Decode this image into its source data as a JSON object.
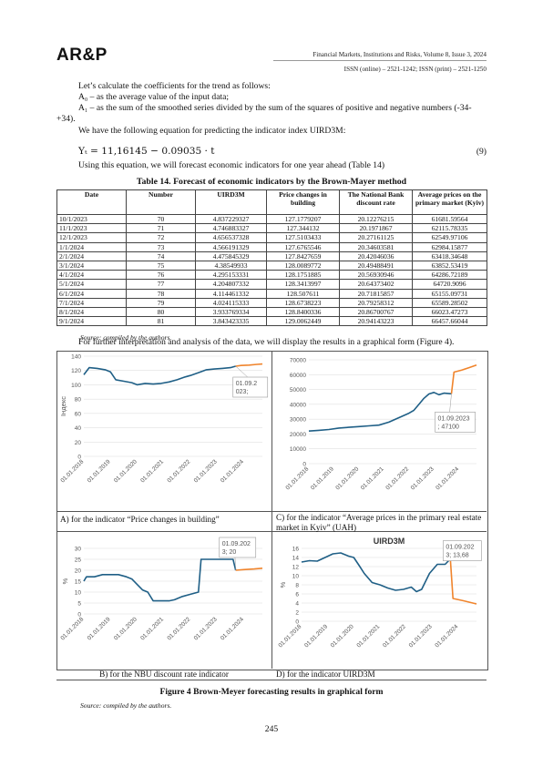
{
  "header": {
    "logo": "AR&P",
    "journal": "Financial Markets, Institutions and Risks, Volume 8, Issue 3, 2024",
    "issn": "ISSN (online) – 2521-1242; ISSN (print) – 2521-1250"
  },
  "paragraphs": {
    "p1": "Let’s calculate the coefficients for the trend as follows:",
    "p2": "A₀ –  as the average value of the input data;",
    "p3": "A₁ – as the sum of the smoothed series divided by the sum of the squares of positive and negative numbers (-34-+34).",
    "p4": "We have the following equation for predicting the indicator index UIRD3M:",
    "equation": "Yₜ = 11,16145 − 0.09035 · t",
    "equation_number": "(9)",
    "p5": "Using this equation, we will forecast economic indicators for one year ahead (Table 14)",
    "p6": "For further interpretation and analysis of the data, we will display the results in a graphical form (Figure 4)."
  },
  "table": {
    "title": "Table 14. Forecast of economic indicators by the Brown-Mayer method",
    "headers": [
      "Date",
      "Number",
      "UIRD3M",
      "Price changes in building",
      "The National Bank discount rate",
      "Average prices on the primary market (Kyiv)"
    ],
    "rows": [
      [
        "10/1/2023",
        "70",
        "4.837229327",
        "127.1779207",
        "20.12276215",
        "61681.59564"
      ],
      [
        "11/1/2023",
        "71",
        "4.746883327",
        "127.344132",
        "20.1971867",
        "62115.78335"
      ],
      [
        "12/1/2023",
        "72",
        "4.656537328",
        "127.5103433",
        "20.27161125",
        "62549.97106"
      ],
      [
        "1/1/2024",
        "73",
        "4.566191329",
        "127.6765546",
        "20.34603581",
        "62984.15877"
      ],
      [
        "2/1/2024",
        "74",
        "4.475845329",
        "127.8427659",
        "20.42046036",
        "63418.34648"
      ],
      [
        "3/1/2024",
        "75",
        "4.38549933",
        "128.0089772",
        "20.49488491",
        "63852.53419"
      ],
      [
        "4/1/2024",
        "76",
        "4.295153331",
        "128.1751885",
        "20.56930946",
        "64286.72189"
      ],
      [
        "5/1/2024",
        "77",
        "4.204807332",
        "128.3413997",
        "20.64373402",
        "64720.9096"
      ],
      [
        "6/1/2024",
        "78",
        "4.114461332",
        "128.507611",
        "20.71815857",
        "65155.09731"
      ],
      [
        "7/1/2024",
        "79",
        "4.024115333",
        "128.6738223",
        "20.79258312",
        "65589.28502"
      ],
      [
        "8/1/2024",
        "80",
        "3.933769334",
        "128.8400336",
        "20.86700767",
        "66023.47273"
      ],
      [
        "9/1/2024",
        "81",
        "3.843423335",
        "129.0062449",
        "20.94143223",
        "66457.66044"
      ]
    ],
    "source": "Source: compiled by the authors."
  },
  "figure": {
    "caption": "Figure 4 Brown-Meyer forecasting results in graphical form",
    "source": "Source: compiled by the authors.",
    "panel_captions": {
      "a": "A) for the indicator “Price changes in building”",
      "b": "B) for the NBU discount rate indicator",
      "c": "C) for the indicator “Average prices in the primary real estate market in Kyiv” (UAH)",
      "d": "D) for the indicator UIRD3M"
    }
  },
  "page_number": "245",
  "colors": {
    "actual": "#1f5f86",
    "forecast": "#f0842c",
    "grid": "#d9d9d9",
    "label_box": "#999999"
  },
  "chart_data": [
    {
      "id": "a",
      "type": "line",
      "title": "",
      "ylabel": "Індекс",
      "ylim": [
        0,
        140
      ],
      "yticks": [
        0,
        20,
        40,
        60,
        80,
        100,
        120,
        140
      ],
      "categories": [
        "01.01.2018",
        "01.01.2019",
        "01.01.2020",
        "01.01.2021",
        "01.01.2022",
        "01.01.2023",
        "01.01.2024"
      ],
      "x_range": [
        2018.0,
        2024.7
      ],
      "series": [
        {
          "role": "actual",
          "x": [
            2018.0,
            2018.2,
            2018.5,
            2018.8,
            2019.0,
            2019.2,
            2019.5,
            2019.8,
            2020.0,
            2020.3,
            2020.6,
            2020.9,
            2021.2,
            2021.5,
            2021.8,
            2022.0,
            2022.3,
            2022.6,
            2022.9,
            2023.2,
            2023.5,
            2023.7
          ],
          "values": [
            114,
            124,
            123,
            121,
            118,
            107,
            105,
            103,
            100,
            102,
            101,
            102,
            104,
            107,
            111,
            113,
            117,
            121,
            122,
            123,
            124,
            126
          ]
        },
        {
          "role": "forecast",
          "x": [
            2023.7,
            2023.9,
            2024.2,
            2024.5,
            2024.7
          ],
          "values": [
            126,
            127,
            127.5,
            128.5,
            129
          ]
        }
      ],
      "annotation": {
        "text": [
          "01.09.2",
          "023;"
        ],
        "x": 2023.7,
        "y": 126
      }
    },
    {
      "id": "b",
      "type": "line",
      "title": "",
      "ylabel": "%",
      "ylim": [
        0,
        30
      ],
      "yticks": [
        0,
        5,
        10,
        15,
        20,
        25,
        30
      ],
      "categories": [
        "01.01.2018",
        "01.01.2019",
        "01.01.2020",
        "01.01.2021",
        "01.01.2022",
        "01.01.2023",
        "01.01.2024"
      ],
      "x_range": [
        2018.0,
        2024.7
      ],
      "series": [
        {
          "role": "actual",
          "x": [
            2018.0,
            2018.1,
            2018.4,
            2018.7,
            2019.0,
            2019.3,
            2019.6,
            2019.8,
            2020.0,
            2020.2,
            2020.4,
            2020.6,
            2020.9,
            2021.2,
            2021.4,
            2021.7,
            2022.0,
            2022.3,
            2022.4,
            2022.7,
            2023.0,
            2023.3,
            2023.6,
            2023.7
          ],
          "values": [
            15,
            17,
            17,
            18,
            18,
            18,
            17,
            16,
            13.5,
            11,
            10,
            6,
            6,
            6,
            6.5,
            8,
            9,
            10,
            25,
            25,
            25,
            25,
            25,
            20
          ]
        },
        {
          "role": "forecast",
          "x": [
            2023.7,
            2024.0,
            2024.4,
            2024.7
          ],
          "values": [
            20,
            20.3,
            20.6,
            20.9
          ]
        }
      ],
      "annotation": {
        "text": [
          "01.09.202",
          "3; 20"
        ],
        "x": 2023.7,
        "y": 20
      }
    },
    {
      "id": "c",
      "type": "line",
      "title": "",
      "ylim": [
        0,
        70000
      ],
      "yticks": [
        0,
        10000,
        20000,
        30000,
        40000,
        50000,
        60000,
        70000
      ],
      "categories": [
        "01.01.2018",
        "01.01.2019",
        "01.01.2020",
        "01.01.2021",
        "01.01.2022",
        "01.01.2023",
        "01.01.2024"
      ],
      "x_range": [
        2018.0,
        2024.7
      ],
      "series": [
        {
          "role": "actual",
          "x": [
            2018.0,
            2018.4,
            2018.8,
            2019.2,
            2019.6,
            2020.0,
            2020.4,
            2020.8,
            2021.2,
            2021.6,
            2022.0,
            2022.2,
            2022.4,
            2022.6,
            2022.8,
            2023.0,
            2023.2,
            2023.4,
            2023.7
          ],
          "values": [
            22000,
            22500,
            23000,
            24000,
            24500,
            25000,
            25500,
            26000,
            28000,
            31000,
            34000,
            36000,
            40000,
            44000,
            47000,
            48000,
            46500,
            47500,
            47100
          ]
        },
        {
          "role": "forecast",
          "x": [
            2023.7,
            2023.8,
            2024.1,
            2024.4,
            2024.7
          ],
          "values": [
            47100,
            61700,
            63000,
            64700,
            66500
          ]
        }
      ],
      "annotation": {
        "text": [
          "01.09.2023",
          "; 47100"
        ],
        "x": 2023.7,
        "y": 47100
      }
    },
    {
      "id": "d",
      "type": "line",
      "title": "UIRD3M",
      "ylabel": "%",
      "ylim": [
        0,
        16
      ],
      "yticks": [
        0,
        2,
        4,
        6,
        8,
        10,
        12,
        14,
        16
      ],
      "categories": [
        "01.01.2018",
        "01.01.2019",
        "01.01.2020",
        "01.01.2021",
        "01.01.2022",
        "01.01.2023",
        "01.01.2024"
      ],
      "x_range": [
        2018.0,
        2024.7
      ],
      "series": [
        {
          "role": "actual",
          "x": [
            2018.0,
            2018.3,
            2018.6,
            2018.9,
            2019.2,
            2019.5,
            2019.8,
            2020.0,
            2020.2,
            2020.4,
            2020.7,
            2021.0,
            2021.3,
            2021.6,
            2021.9,
            2022.2,
            2022.4,
            2022.6,
            2022.9,
            2023.2,
            2023.5,
            2023.7
          ],
          "values": [
            13,
            13.3,
            13.2,
            14,
            14.8,
            15,
            14.3,
            14,
            12.3,
            10.5,
            8.5,
            8,
            7.3,
            6.8,
            7,
            7.5,
            6.5,
            7,
            10.5,
            12.5,
            12.5,
            13.68
          ]
        },
        {
          "role": "forecast",
          "x": [
            2023.7,
            2023.8,
            2024.2,
            2024.7
          ],
          "values": [
            13.68,
            5,
            4.5,
            3.8
          ]
        }
      ],
      "annotation": {
        "text": [
          "01.09.202",
          "3; 13,68"
        ],
        "x": 2023.7,
        "y": 13.68
      }
    }
  ]
}
